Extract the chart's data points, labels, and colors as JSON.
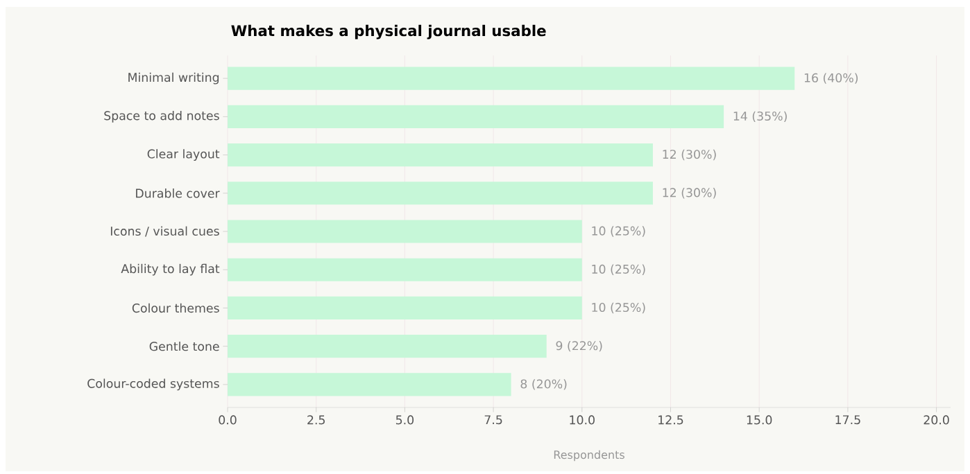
{
  "chart_data": {
    "type": "bar",
    "orientation": "horizontal",
    "title": "What makes a physical journal usable",
    "xlabel": "Respondents",
    "categories": [
      "Minimal writing",
      "Space to add notes",
      "Clear layout",
      "Durable cover",
      "Icons / visual cues",
      "Ability to lay flat",
      "Colour themes",
      "Gentle tone",
      "Colour-coded systems"
    ],
    "values": [
      16,
      14,
      12,
      12,
      10,
      10,
      10,
      9,
      8
    ],
    "value_labels": [
      "16 (40%)",
      "14 (35%)",
      "12 (30%)",
      "12 (30%)",
      "10 (25%)",
      "10 (25%)",
      "10 (25%)",
      "9 (22%)",
      "8 (20%)"
    ],
    "color": "#c6f7d8",
    "xlim": [
      0,
      20.4
    ],
    "xticks": [
      {
        "value": 0,
        "label": "0.0"
      },
      {
        "value": 2.5,
        "label": "2.5"
      },
      {
        "value": 5,
        "label": "5.0"
      },
      {
        "value": 7.5,
        "label": "7.5"
      },
      {
        "value": 10,
        "label": "10.0"
      },
      {
        "value": 12.5,
        "label": "12.5"
      },
      {
        "value": 15,
        "label": "15.0"
      },
      {
        "value": 17.5,
        "label": "17.5"
      },
      {
        "value": 20,
        "label": "20.0"
      }
    ],
    "grid": "x"
  }
}
